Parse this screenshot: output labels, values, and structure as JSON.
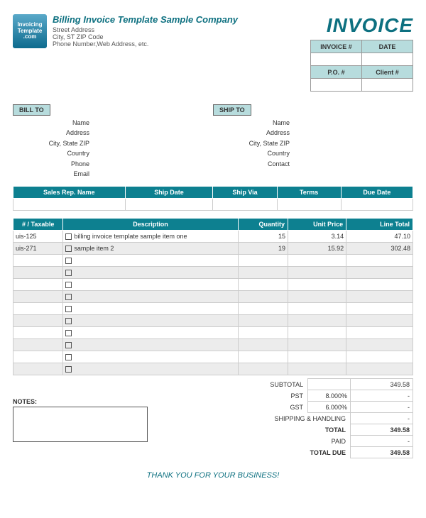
{
  "company": {
    "title": "Billing Invoice Template Sample Company",
    "street": "Street Address",
    "city": "City, ST  ZIP Code",
    "contact": "Phone Number,Web Address, etc."
  },
  "logo": {
    "line1": "Invoicing",
    "line2": "Template",
    "line3": ".com"
  },
  "invoice_word": "INVOICE",
  "meta": {
    "invoice_num_label": "INVOICE #",
    "date_label": "DATE",
    "po_label": "P.O. #",
    "client_label": "Client #",
    "invoice_num": "",
    "date": "",
    "po": "",
    "client": ""
  },
  "bill_to": {
    "heading": "BILL TO",
    "fields": [
      "Name",
      "Address",
      "City, State ZIP",
      "Country",
      "Phone",
      "Email"
    ]
  },
  "ship_to": {
    "heading": "SHIP TO",
    "fields": [
      "Name",
      "Address",
      "City, State ZIP",
      "Country",
      "Contact"
    ]
  },
  "ship_cols": [
    "Sales Rep. Name",
    "Ship Date",
    "Ship Via",
    "Terms",
    "Due Date"
  ],
  "item_cols": [
    "# / Taxable",
    "Description",
    "Quantity",
    "Unit Price",
    "Line Total"
  ],
  "items": [
    {
      "id": "uis-125",
      "desc": "billing invoice template sample item one",
      "qty": "15",
      "price": "3.14",
      "total": "47.10"
    },
    {
      "id": "uis-271",
      "desc": "sample item 2",
      "qty": "19",
      "price": "15.92",
      "total": "302.48"
    }
  ],
  "blank_rows": 10,
  "totals": {
    "subtotal": {
      "label": "SUBTOTAL",
      "value": "349.58"
    },
    "pst": {
      "label": "PST",
      "pct": "8.000%",
      "value": "-"
    },
    "gst": {
      "label": "GST",
      "pct": "6.000%",
      "value": "-"
    },
    "shipping": {
      "label": "SHIPPING & HANDLING",
      "value": "-"
    },
    "total": {
      "label": "TOTAL",
      "value": "349.58"
    },
    "paid": {
      "label": "PAID",
      "value": "-"
    },
    "due": {
      "label": "TOTAL DUE",
      "value": "349.58"
    }
  },
  "notes_label": "NOTES:",
  "footer": "THANK YOU FOR YOUR BUSINESS!",
  "colors": {
    "teal_dark": "#0d8090",
    "teal_light": "#b7dcdd",
    "teal_text": "#0d7080"
  }
}
